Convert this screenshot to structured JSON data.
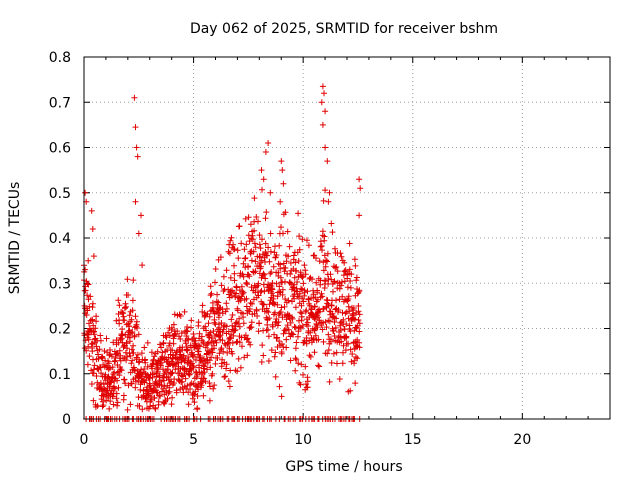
{
  "chart_data": {
    "type": "scatter",
    "title": "Day 062 of 2025, SRMTID for receiver bshm",
    "xlabel": "GPS time / hours",
    "ylabel": "SRMTID / TECUs",
    "xlim": [
      0,
      24
    ],
    "ylim": [
      0,
      0.8
    ],
    "x_ticks": [
      0,
      5,
      10,
      15,
      20
    ],
    "x_tick_labels": [
      "0",
      "5",
      "10",
      "15",
      "20"
    ],
    "y_ticks": [
      0,
      0.1,
      0.2,
      0.3,
      0.4,
      0.5,
      0.6,
      0.7,
      0.8
    ],
    "y_tick_labels": [
      "0",
      "0.1",
      "0.2",
      "0.3",
      "0.4",
      "0.5",
      "0.6",
      "0.7",
      "0.8"
    ],
    "grid": true,
    "marker": "plus",
    "color": "#e00000",
    "x_range_of_data": [
      0,
      12.6
    ],
    "trend": [
      [
        0.0,
        0.27
      ],
      [
        0.2,
        0.2
      ],
      [
        0.5,
        0.14
      ],
      [
        0.8,
        0.09
      ],
      [
        1.2,
        0.08
      ],
      [
        1.5,
        0.13
      ],
      [
        1.9,
        0.17
      ],
      [
        2.2,
        0.18
      ],
      [
        2.5,
        0.1
      ],
      [
        3.0,
        0.07
      ],
      [
        3.5,
        0.1
      ],
      [
        4.0,
        0.12
      ],
      [
        4.5,
        0.13
      ],
      [
        5.0,
        0.12
      ],
      [
        5.5,
        0.15
      ],
      [
        6.0,
        0.18
      ],
      [
        6.5,
        0.22
      ],
      [
        7.0,
        0.25
      ],
      [
        7.5,
        0.3
      ],
      [
        8.0,
        0.3
      ],
      [
        8.5,
        0.27
      ],
      [
        9.0,
        0.26
      ],
      [
        9.5,
        0.3
      ],
      [
        10.0,
        0.23
      ],
      [
        10.5,
        0.22
      ],
      [
        11.0,
        0.3
      ],
      [
        11.5,
        0.26
      ],
      [
        12.0,
        0.23
      ],
      [
        12.5,
        0.21
      ]
    ],
    "spikes": [
      [
        0.05,
        0.5
      ],
      [
        0.1,
        0.48
      ],
      [
        0.35,
        0.46
      ],
      [
        0.4,
        0.42
      ],
      [
        0.45,
        0.36
      ],
      [
        2.3,
        0.71
      ],
      [
        2.35,
        0.645
      ],
      [
        2.4,
        0.6
      ],
      [
        2.45,
        0.58
      ],
      [
        2.35,
        0.48
      ],
      [
        2.5,
        0.41
      ],
      [
        2.6,
        0.45
      ],
      [
        2.65,
        0.34
      ],
      [
        8.1,
        0.55
      ],
      [
        8.3,
        0.59
      ],
      [
        8.4,
        0.61
      ],
      [
        8.2,
        0.53
      ],
      [
        8.5,
        0.5
      ],
      [
        9.0,
        0.57
      ],
      [
        9.05,
        0.55
      ],
      [
        9.1,
        0.52
      ],
      [
        8.95,
        0.48
      ],
      [
        10.9,
        0.735
      ],
      [
        10.95,
        0.72
      ],
      [
        10.85,
        0.7
      ],
      [
        11.0,
        0.68
      ],
      [
        10.9,
        0.65
      ],
      [
        11.0,
        0.6
      ],
      [
        11.1,
        0.57
      ],
      [
        11.2,
        0.5
      ],
      [
        11.15,
        0.48
      ],
      [
        12.55,
        0.53
      ],
      [
        12.6,
        0.51
      ],
      [
        12.55,
        0.45
      ]
    ],
    "zero_points_x_range": [
      0,
      12.6
    ]
  }
}
